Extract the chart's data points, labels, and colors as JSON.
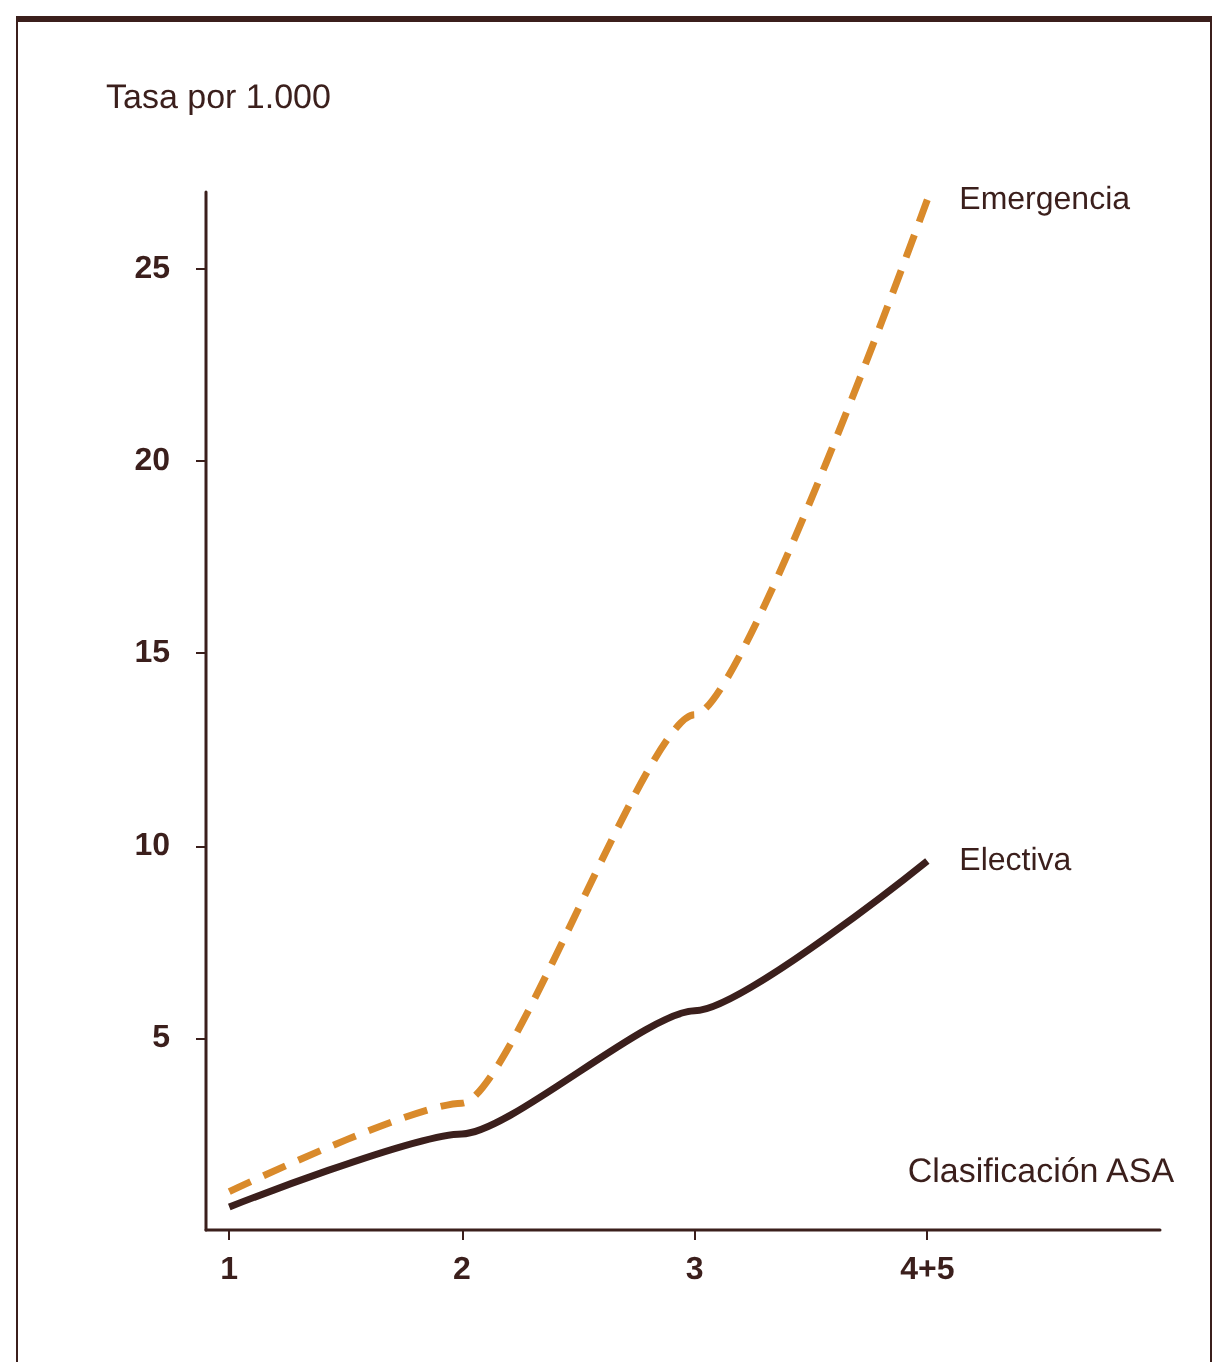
{
  "chart_data": {
    "type": "line",
    "xlabel": "Clasificación ASA",
    "ylabel": "Tasa por 1.000",
    "x": [
      1,
      2,
      3,
      4
    ],
    "xlim": [
      0.9,
      5
    ],
    "xticks": [
      1,
      2,
      3,
      {
        "value": 4,
        "label": "4+5"
      }
    ],
    "ylim": [
      0,
      27
    ],
    "yticks": [
      5,
      10,
      15,
      20,
      25
    ],
    "grid": false,
    "legend": false,
    "marker": "none",
    "series": [
      {
        "name": "Emergencia",
        "color": "#d98a2b",
        "line_style": "dashed",
        "values": [
          1.0,
          3.3,
          13.4,
          26.8
        ]
      },
      {
        "name": "Electiva",
        "color": "#3b1f1c",
        "line_style": "solid",
        "values": [
          0.6,
          2.5,
          5.7,
          9.6
        ]
      }
    ]
  }
}
